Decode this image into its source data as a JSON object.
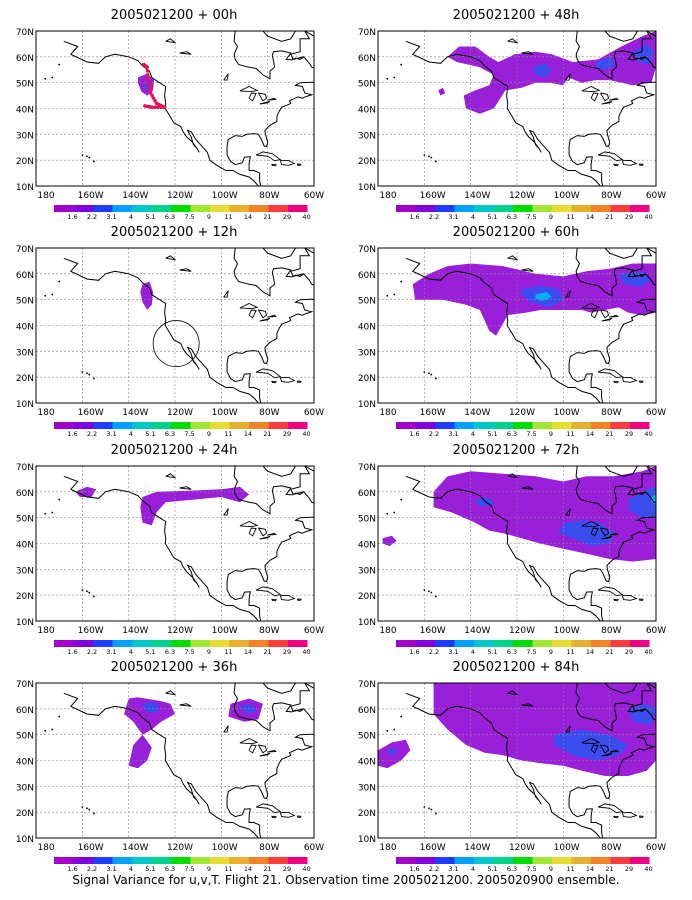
{
  "colorbar": {
    "labels": [
      "1.6",
      "2.2",
      "3.1",
      "4",
      "5.1",
      "6.3",
      "7.5",
      "9",
      "11",
      "14",
      "21",
      "29",
      "40"
    ],
    "colors": [
      "#a000c8",
      "#8200dc",
      "#1e3cff",
      "#00a0ff",
      "#00c8c8",
      "#00d28c",
      "#00dc00",
      "#a0e632",
      "#e6dc32",
      "#e6af2d",
      "#f08228",
      "#fa3c3c",
      "#f00082"
    ]
  },
  "axis": {
    "y_labels": [
      "70N",
      "60N",
      "50N",
      "40N",
      "30N",
      "20N",
      "10N"
    ],
    "x_labels": [
      "180",
      "160W",
      "140W",
      "120W",
      "100W",
      "80W",
      "60W"
    ]
  },
  "panels": [
    {
      "title": "2005021200  + 00h"
    },
    {
      "title": "2005021200  + 48h"
    },
    {
      "title": "2005021200  + 12h"
    },
    {
      "title": "2005021200  + 60h"
    },
    {
      "title": "2005021200  + 24h"
    },
    {
      "title": "2005021200  + 72h"
    },
    {
      "title": "2005021200  + 36h"
    },
    {
      "title": "2005021200  + 84h"
    }
  ],
  "caption": "Signal Variance for u,v,T. Flight 21. Observation time 2005021200. 2005020900 ensemble."
}
